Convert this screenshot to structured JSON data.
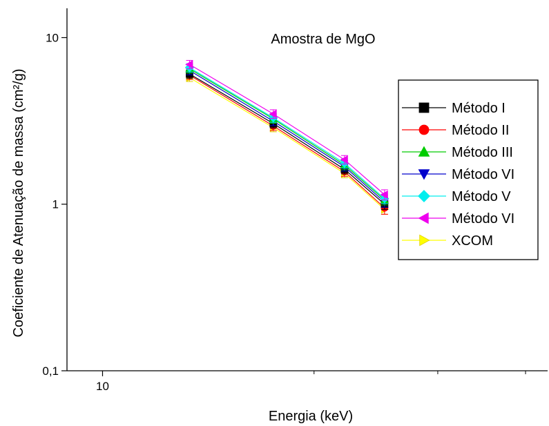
{
  "chart_data": {
    "type": "line",
    "title": "Amostra de MgO",
    "xlabel": "Energia (keV)",
    "ylabel": "Coeficiente de Atenuação de massa (cm²/g)",
    "x_scale": "log",
    "y_scale": "log",
    "xlim": [
      8.9,
      43
    ],
    "ylim": [
      0.1,
      15
    ],
    "grid": false,
    "legend_position": "right",
    "x_ticks": [
      {
        "value": 10,
        "label": "10"
      }
    ],
    "x_minor_ticks": [
      20,
      30,
      40
    ],
    "y_ticks": [
      {
        "value": 0.1,
        "label": "0,1"
      },
      {
        "value": 1,
        "label": "1"
      },
      {
        "value": 10,
        "label": "10"
      }
    ],
    "x": [
      13.3,
      17.5,
      22.1,
      25.2
    ],
    "series": [
      {
        "name": "Método I",
        "color": "#000000",
        "marker": "square",
        "values": [
          6.05,
          3.05,
          1.62,
          1.0
        ],
        "errors": [
          0.35,
          0.18,
          0.1,
          0.07
        ]
      },
      {
        "name": "Método II",
        "color": "#ff0000",
        "marker": "circle",
        "values": [
          5.95,
          2.95,
          1.57,
          0.95
        ],
        "errors": [
          0.35,
          0.18,
          0.1,
          0.08
        ]
      },
      {
        "name": "Método III",
        "color": "#00cc00",
        "marker": "triangle-up",
        "values": [
          6.5,
          3.25,
          1.72,
          1.06
        ],
        "errors": [
          0.38,
          0.19,
          0.11,
          0.07
        ]
      },
      {
        "name": "Método VI",
        "color": "#0000cc",
        "marker": "triangle-down",
        "values": [
          6.35,
          3.15,
          1.68,
          1.03
        ],
        "errors": [
          0.37,
          0.19,
          0.1,
          0.07
        ]
      },
      {
        "name": "Método V",
        "color": "#00eeee",
        "marker": "diamond",
        "values": [
          6.6,
          3.3,
          1.76,
          1.08
        ],
        "errors": [
          0.38,
          0.2,
          0.11,
          0.07
        ]
      },
      {
        "name": "Método VI",
        "color": "#ee00ee",
        "marker": "triangle-left",
        "values": [
          6.9,
          3.48,
          1.85,
          1.14
        ],
        "errors": [
          0.4,
          0.21,
          0.11,
          0.08
        ]
      },
      {
        "name": "XCOM",
        "color": "#ffff00",
        "marker": "triangle-right",
        "values": [
          5.75,
          2.88,
          1.53,
          0.93
        ],
        "errors": [
          0.3,
          0.16,
          0.09,
          0.06
        ]
      }
    ]
  }
}
